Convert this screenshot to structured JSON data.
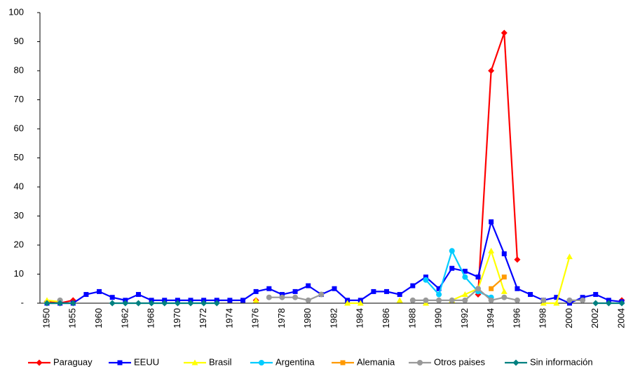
{
  "chart_data": {
    "type": "line",
    "categories": [
      "1950",
      null,
      "1955",
      null,
      "1960",
      null,
      "1962",
      null,
      "1968",
      null,
      "1970",
      null,
      "1972",
      null,
      "1974",
      null,
      "1976",
      null,
      "1978",
      null,
      "1980",
      null,
      "1982",
      null,
      "1984",
      null,
      "1986",
      null,
      "1988",
      null,
      "1990",
      null,
      "1992",
      null,
      "1994",
      null,
      "1996",
      null,
      "1998",
      null,
      "2000",
      null,
      "2002",
      null,
      "2004"
    ],
    "series": [
      {
        "name": "Paraguay",
        "color": "#ff0000",
        "marker": "diamond",
        "values": [
          0.5,
          0,
          1,
          null,
          null,
          null,
          null,
          null,
          null,
          null,
          null,
          null,
          null,
          null,
          null,
          null,
          1,
          null,
          null,
          null,
          null,
          null,
          null,
          null,
          null,
          null,
          null,
          null,
          null,
          null,
          null,
          null,
          null,
          3,
          80,
          93,
          15,
          null,
          null,
          null,
          null,
          null,
          null,
          null,
          1
        ]
      },
      {
        "name": "EEUU",
        "color": "#0000ff",
        "marker": "square",
        "values": [
          0,
          0,
          0,
          3,
          4,
          2,
          1,
          3,
          1,
          1,
          1,
          1,
          1,
          1,
          1,
          1,
          4,
          5,
          3,
          4,
          6,
          3,
          5,
          1,
          1,
          4,
          4,
          3,
          6,
          9,
          5,
          12,
          11,
          9,
          28,
          17,
          5,
          3,
          1,
          2,
          0,
          2,
          3,
          1,
          0.5
        ]
      },
      {
        "name": "Brasil",
        "color": "#ffff00",
        "marker": "triangle",
        "values": [
          1,
          0.5,
          null,
          null,
          null,
          null,
          null,
          null,
          null,
          null,
          null,
          null,
          null,
          null,
          null,
          null,
          1,
          null,
          null,
          null,
          null,
          null,
          null,
          0,
          0,
          null,
          null,
          1,
          null,
          0,
          null,
          1,
          3,
          5,
          18,
          4,
          null,
          null,
          0,
          0,
          16,
          null,
          null,
          null,
          null
        ]
      },
      {
        "name": "Argentina",
        "color": "#00ccff",
        "marker": "circle",
        "values": [
          null,
          null,
          null,
          null,
          null,
          null,
          null,
          null,
          null,
          null,
          null,
          null,
          null,
          null,
          null,
          null,
          null,
          null,
          null,
          null,
          null,
          null,
          null,
          null,
          null,
          null,
          null,
          null,
          null,
          8,
          3,
          18,
          9,
          4,
          2,
          null,
          null,
          null,
          null,
          null,
          null,
          null,
          null,
          null,
          null
        ]
      },
      {
        "name": "Alemania",
        "color": "#ff9900",
        "marker": "square",
        "values": [
          null,
          null,
          null,
          null,
          null,
          null,
          null,
          null,
          null,
          null,
          null,
          null,
          null,
          null,
          null,
          null,
          null,
          null,
          null,
          null,
          null,
          null,
          null,
          null,
          null,
          null,
          null,
          null,
          null,
          null,
          null,
          null,
          null,
          null,
          5,
          9,
          null,
          null,
          null,
          null,
          null,
          null,
          null,
          null,
          null
        ]
      },
      {
        "name": "Otros paises",
        "color": "#999999",
        "marker": "circle",
        "values": [
          null,
          1,
          null,
          null,
          null,
          null,
          null,
          null,
          null,
          null,
          null,
          null,
          null,
          null,
          null,
          null,
          null,
          2,
          2,
          2,
          1,
          3,
          null,
          null,
          null,
          null,
          null,
          null,
          1,
          1,
          1,
          1,
          1,
          5,
          1,
          2,
          1,
          null,
          1,
          null,
          1,
          1,
          null,
          null,
          null
        ]
      },
      {
        "name": "Sin información",
        "color": "#008080",
        "marker": "diamond",
        "values": [
          0,
          0,
          0,
          null,
          null,
          0,
          0,
          0,
          0,
          0,
          0,
          0,
          0,
          0,
          null,
          null,
          null,
          null,
          null,
          null,
          null,
          null,
          null,
          null,
          null,
          null,
          null,
          null,
          null,
          null,
          null,
          null,
          null,
          null,
          null,
          null,
          null,
          null,
          null,
          null,
          null,
          null,
          0,
          0,
          0
        ]
      }
    ],
    "ylim": [
      0,
      100
    ],
    "yticks": [
      {
        "value": 0,
        "label": "-"
      },
      10,
      20,
      30,
      40,
      50,
      60,
      70,
      80,
      90,
      100
    ],
    "grid": false,
    "legend": "bottom"
  }
}
